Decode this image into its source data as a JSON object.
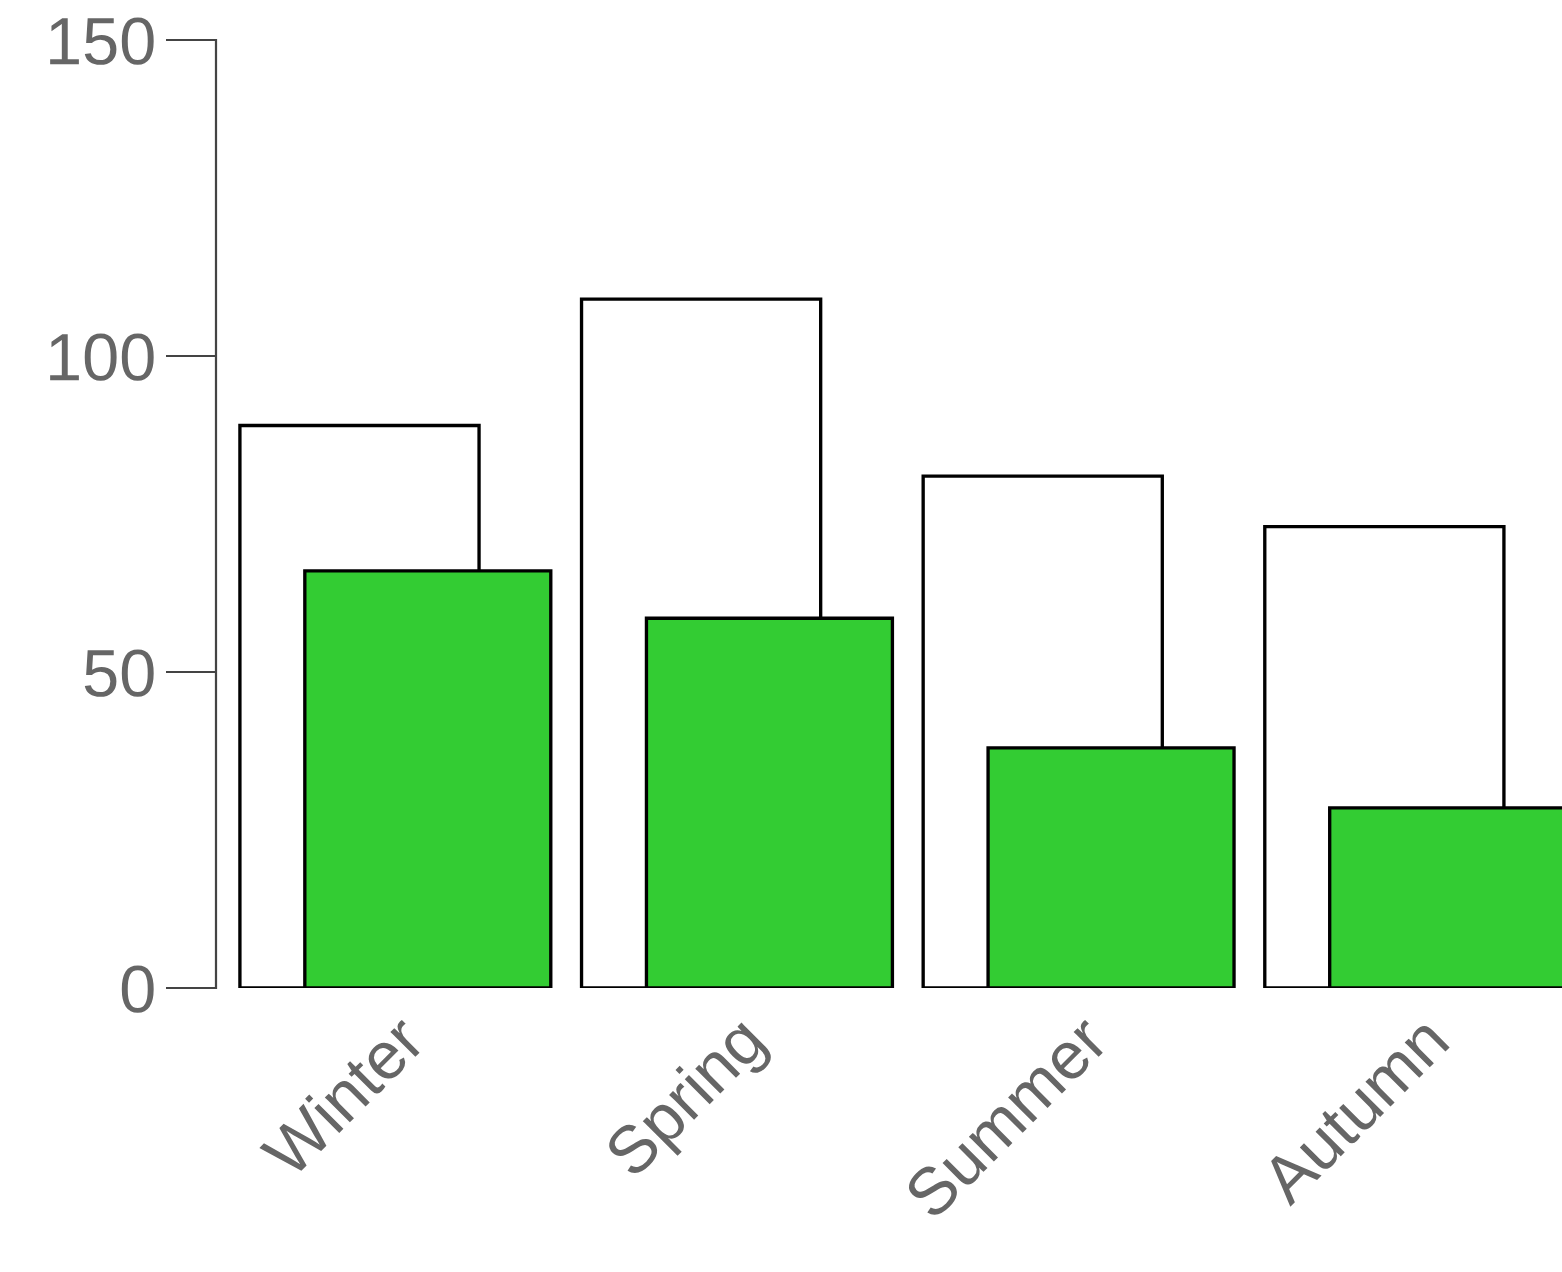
{
  "chart_data": {
    "type": "bar",
    "categories": [
      "Winter",
      "Spring",
      "Summer",
      "Autumn"
    ],
    "series": [
      {
        "color": "#ffffff",
        "values": [
          89,
          109,
          81,
          73
        ]
      },
      {
        "color": "#33cc33",
        "values": [
          66,
          58.5,
          38,
          28.5
        ]
      }
    ],
    "ylim": [
      0,
      150
    ],
    "yticks": [
      0,
      50,
      100,
      150
    ],
    "grid": false,
    "legend": false
  }
}
